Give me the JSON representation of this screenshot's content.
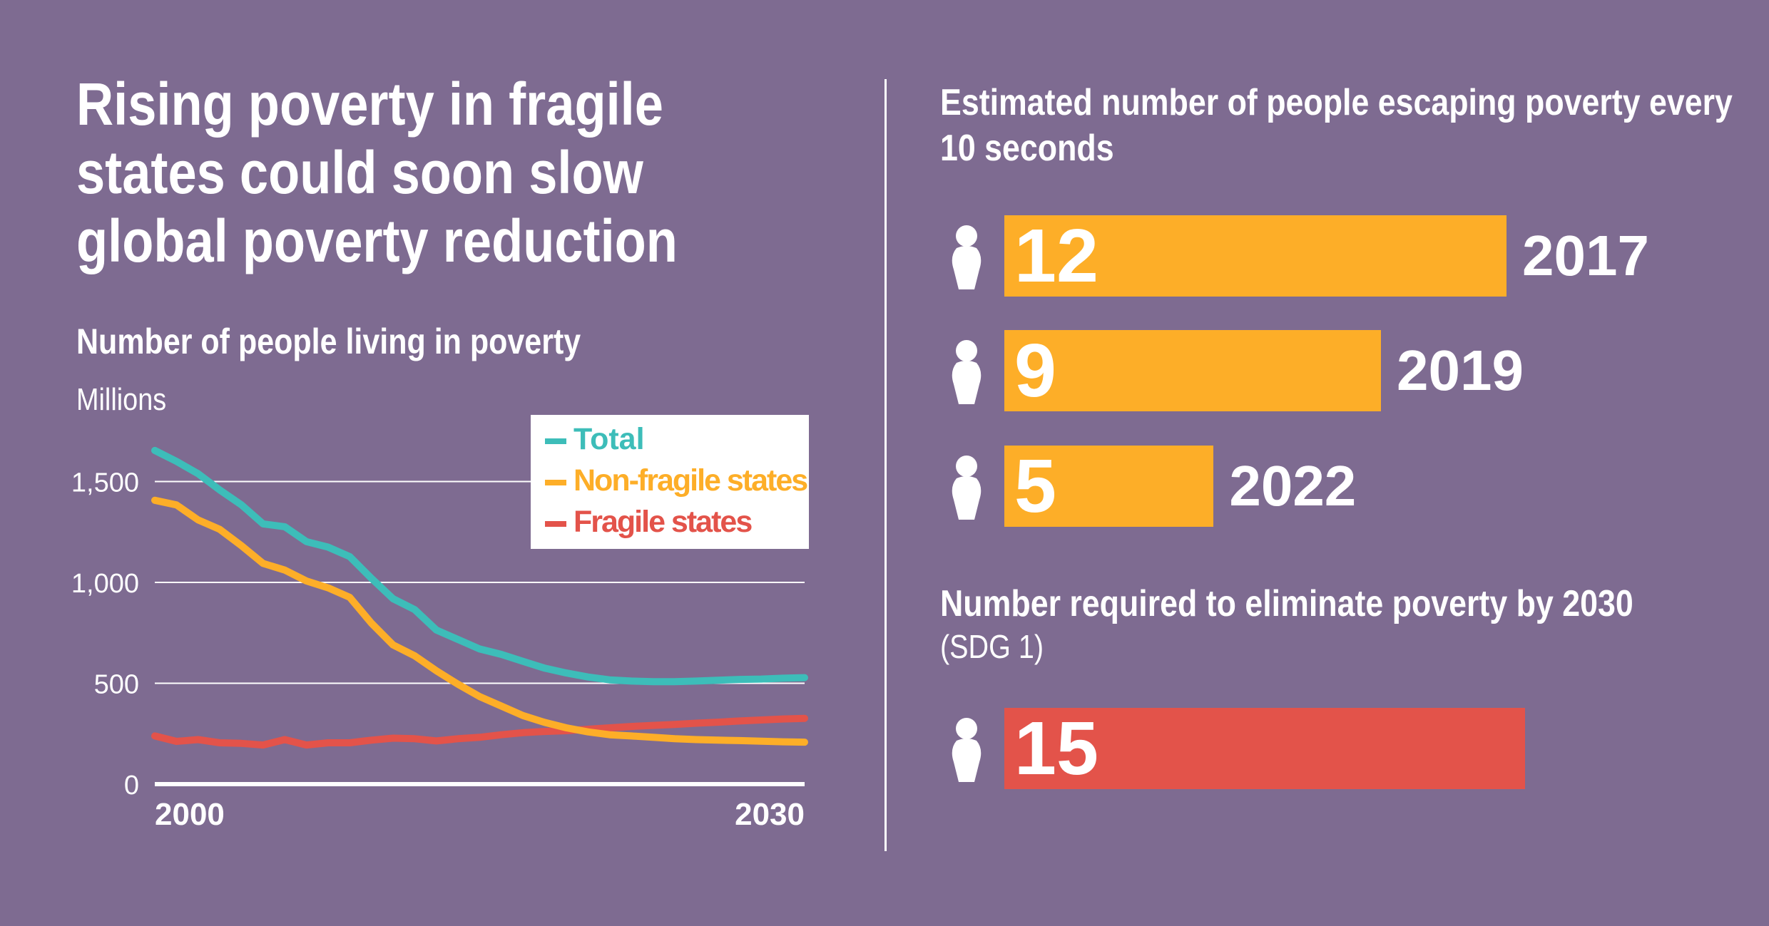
{
  "title": "Rising poverty in fragile states could soon slow global poverty reduction",
  "colors": {
    "background": "#7e6b91",
    "total": "#3dbdb9",
    "non_fragile": "#fdae28",
    "fragile": "#e3534a"
  },
  "chart_data": {
    "type": "line",
    "title": "Number of people living in poverty",
    "ylabel": "Millions",
    "xlabel": "",
    "x_tick_labels": [
      "2000",
      "2030"
    ],
    "y_tick_labels": [
      "0",
      "500",
      "1,000",
      "1,500"
    ],
    "y_ticks": [
      0,
      500,
      1000,
      1500
    ],
    "xlim": [
      2000,
      2030
    ],
    "ylim": [
      0,
      1700
    ],
    "grid": "horizontal",
    "legend_placement": "top-right",
    "x": [
      2000,
      2001,
      2002,
      2003,
      2004,
      2005,
      2006,
      2007,
      2008,
      2009,
      2010,
      2011,
      2012,
      2013,
      2014,
      2015,
      2016,
      2017,
      2018,
      2019,
      2020,
      2021,
      2022,
      2023,
      2024,
      2025,
      2026,
      2027,
      2028,
      2029,
      2030
    ],
    "series": [
      {
        "name": "Total",
        "color": "#3dbdb9",
        "values": [
          1654,
          1600,
          1539,
          1458,
          1384,
          1290,
          1276,
          1202,
          1175,
          1128,
          1020,
          919,
          865,
          764,
          717,
          670,
          643,
          609,
          575,
          551,
          531,
          517,
          511,
          508,
          508,
          511,
          515,
          519,
          521,
          525,
          528
        ]
      },
      {
        "name": "Non-fragile states",
        "color": "#fdae28",
        "values": [
          1407,
          1384,
          1310,
          1263,
          1182,
          1094,
          1061,
          1007,
          973,
          926,
          798,
          690,
          636,
          562,
          495,
          434,
          387,
          340,
          306,
          279,
          259,
          245,
          239,
          232,
          225,
          221,
          218,
          216,
          213,
          210,
          208
        ]
      },
      {
        "name": "Fragile states",
        "color": "#e3534a",
        "values": [
          239,
          212,
          221,
          205,
          202,
          194,
          221,
          194,
          205,
          205,
          218,
          228,
          225,
          214,
          225,
          232,
          245,
          255,
          261,
          265,
          272,
          279,
          286,
          291,
          296,
          302,
          307,
          313,
          318,
          323,
          326
        ]
      }
    ]
  },
  "escaping": {
    "title": "Estimated number of people escaping poverty every 10 seconds",
    "icon": "person-icon",
    "bars": [
      {
        "value": "12",
        "year": "2017",
        "number": 12
      },
      {
        "value": "9",
        "year": "2019",
        "number": 9
      },
      {
        "value": "5",
        "year": "2022",
        "number": 5
      }
    ]
  },
  "required": {
    "title": "Number required to eliminate poverty by 2030",
    "subtitle": "(SDG 1)",
    "value": "15",
    "number": 15
  }
}
